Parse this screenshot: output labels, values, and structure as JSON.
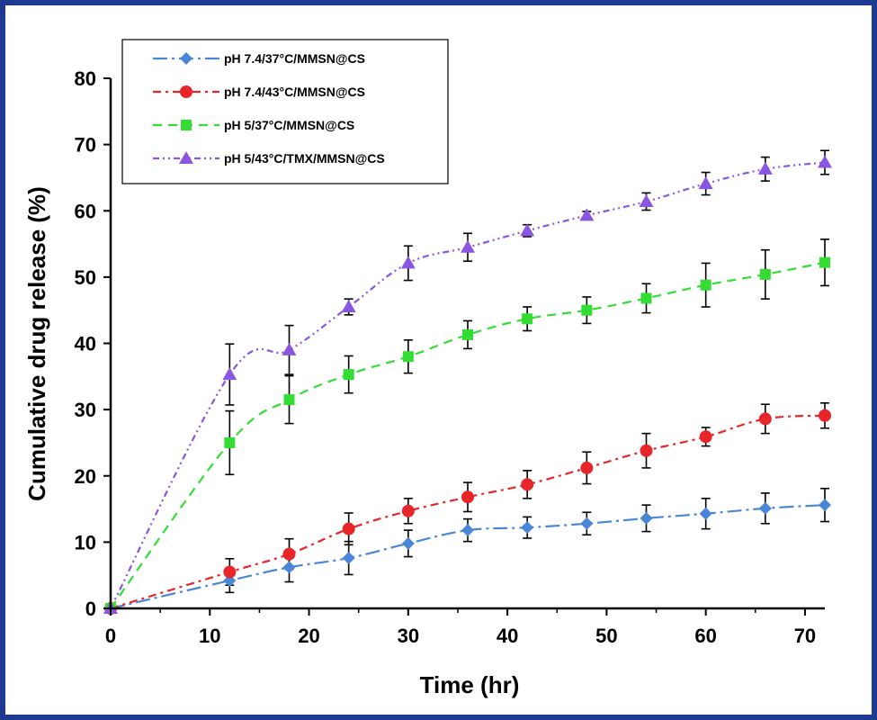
{
  "chart_data": {
    "type": "line",
    "title": "",
    "xlabel": "Time (hr)",
    "ylabel": "Cumulative drug release (%)",
    "xlim": [
      0,
      72
    ],
    "ylim": [
      0,
      80
    ],
    "xticks": [
      "0",
      "10",
      "20",
      "30",
      "40",
      "50",
      "60",
      "70"
    ],
    "yticks": [
      "0",
      "10",
      "20",
      "30",
      "40",
      "50",
      "60",
      "70",
      "80"
    ],
    "grid": false,
    "legend_position": "top-left",
    "x": [
      0,
      12,
      18,
      24,
      30,
      36,
      42,
      48,
      54,
      60,
      66,
      72
    ],
    "series": [
      {
        "name": "pH 7.4/37°C/MMSN@CS",
        "color": "#4a86d8",
        "marker": "diamond",
        "dash": "long-dash-dot",
        "values": [
          0,
          4.2,
          6.2,
          7.6,
          9.8,
          11.8,
          12.2,
          12.8,
          13.6,
          14.3,
          15.1,
          15.6
        ],
        "errors": [
          0,
          1.8,
          2.2,
          2.5,
          2.0,
          1.7,
          1.6,
          1.7,
          2.0,
          2.3,
          2.3,
          2.5
        ]
      },
      {
        "name": "pH 7.4/43°C/MMSN@CS",
        "color": "#e8262a",
        "marker": "circle",
        "dash": "dash-dot",
        "values": [
          0,
          5.5,
          8.2,
          12.0,
          14.7,
          16.8,
          18.7,
          21.2,
          23.8,
          25.9,
          28.6,
          29.1
        ],
        "errors": [
          0,
          2.0,
          2.3,
          2.4,
          1.9,
          2.2,
          2.1,
          2.4,
          2.6,
          1.4,
          2.2,
          1.9
        ]
      },
      {
        "name": "pH 5/37°C/MMSN@CS",
        "color": "#33dd33",
        "marker": "square",
        "dash": "dash",
        "values": [
          0,
          25.0,
          31.5,
          35.3,
          38.0,
          41.3,
          43.7,
          45.0,
          46.8,
          48.8,
          50.4,
          52.2
        ],
        "errors": [
          0,
          4.8,
          3.6,
          2.8,
          2.5,
          2.1,
          1.8,
          2.0,
          2.2,
          3.3,
          3.7,
          3.5
        ]
      },
      {
        "name": "pH 5/43°C/TMX/MMSN@CS",
        "color": "#8a55e0",
        "marker": "triangle",
        "dash": "dash-dot-dot",
        "values": [
          0,
          35.3,
          39.0,
          45.5,
          52.1,
          54.5,
          57.0,
          59.3,
          61.4,
          64.1,
          66.3,
          67.3
        ],
        "errors": [
          0,
          4.6,
          3.7,
          1.2,
          2.6,
          2.1,
          0.9,
          0.6,
          1.3,
          1.7,
          1.8,
          1.8
        ]
      }
    ]
  }
}
